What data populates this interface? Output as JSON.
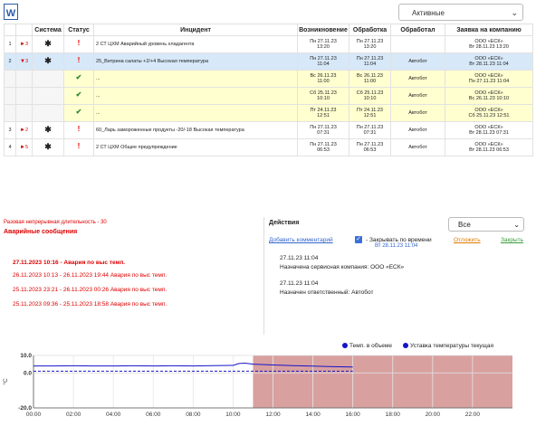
{
  "toolbar": {
    "word_icon": "word-document-icon",
    "filter_value": "Активные"
  },
  "table": {
    "headers": [
      "",
      "",
      "Система",
      "Статус",
      "Инцидент",
      "Возникновение",
      "Обработка",
      "Обработал",
      "Заявка на компанию"
    ],
    "rows": [
      {
        "num": "1",
        "arrow": "►",
        "count": "3",
        "status": "!",
        "incident": "2 СТ ЦХМ Аварийный уровень хладагента",
        "occurred": [
          "Пн 27.11.23",
          "13:20"
        ],
        "processed": [
          "Пн 27.11.23",
          "13:20"
        ],
        "by": "",
        "request": [
          "ООО «ЕСК»",
          "Вт 28.11.23 13:20"
        ],
        "cls": ""
      },
      {
        "num": "2",
        "arrow": "▼",
        "count": "3",
        "status": "!",
        "incident": "25_Витрина салаты +2/+4 Высокая температура",
        "occurred": [
          "Пн 27.11.23",
          "11:04"
        ],
        "processed": [
          "Пн 27.11.23",
          "11:04"
        ],
        "by": "Автобот",
        "request": [
          "ООО «ЕСК»",
          "Вт 28.11.23 11:04"
        ],
        "cls": "sel"
      },
      {
        "num": "",
        "arrow": "",
        "count": "",
        "status": "✔",
        "incident": "...",
        "occurred": [
          "Вс 26.11.23",
          "11:00"
        ],
        "processed": [
          "Вс 26.11.23",
          "11:00"
        ],
        "by": "Автобот",
        "request": [
          "ООО «ЕСК»",
          "Пн 27.11.23 11:04"
        ],
        "cls": "yel"
      },
      {
        "num": "",
        "arrow": "",
        "count": "",
        "status": "✔",
        "incident": "...",
        "occurred": [
          "Сб 25.11.23",
          "10:10"
        ],
        "processed": [
          "Сб 25.11.23",
          "10:10"
        ],
        "by": "Автобот",
        "request": [
          "ООО «ЕСК»",
          "Вс 26.11.23 10:10"
        ],
        "cls": "yel"
      },
      {
        "num": "",
        "arrow": "",
        "count": "",
        "status": "✔",
        "incident": "...",
        "occurred": [
          "Пт 24.11.23",
          "12:51"
        ],
        "processed": [
          "Пт 24.11.23",
          "12:51"
        ],
        "by": "Автобот",
        "request": [
          "ООО «ЕСК»",
          "Сб 25.11.23 12:51"
        ],
        "cls": "yel"
      },
      {
        "num": "3",
        "arrow": "►",
        "count": "2",
        "status": "!",
        "incident": "60_Ларь замороженные продукты -20/-18 Высокая температура",
        "occurred": [
          "Пн 27.11.23",
          "07:31"
        ],
        "processed": [
          "Пн 27.11.23",
          "07:31"
        ],
        "by": "Автобот",
        "request": [
          "ООО «ЕСК»",
          "Вт 28.11.23 07:31"
        ],
        "cls": ""
      },
      {
        "num": "4",
        "arrow": "►",
        "count": "5",
        "status": "!",
        "incident": "2 СТ ЦХМ Общее предупреждение",
        "occurred": [
          "Пн 27.11.23",
          "06:53"
        ],
        "processed": [
          "Пн 27.11.23",
          "06:53"
        ],
        "by": "Автобот",
        "request": [
          "ООО «ЕСК»",
          "Вт 28.11.23 06:53"
        ],
        "cls": ""
      }
    ]
  },
  "alarms": {
    "long_duration": "Разовая непрерывная длительность - 30",
    "title": "Аварийные сообщения",
    "items": [
      "27.11.2023 10:16 - Авария по выс темп.",
      "26.11.2023 10:13 - 26.11.2023 19:44 Авария по выс темп.",
      "25.11.2023 23:21 - 26.11.2023 00:26 Авария по выс темп.",
      "25.11.2023 09:36 - 25.11.2023 18:58 Авария по выс темп."
    ]
  },
  "actions": {
    "title": "Действия",
    "filter": "Все",
    "add_comment": "Добавить комментарий",
    "auto_close_label": "- Закрывать по времени",
    "auto_close_date": "Вт 28.11.23 11:04",
    "postpone": "Отложить",
    "close": "Закрыть",
    "entries": [
      {
        "date": "27.11.23 11:04",
        "text": "Назначена сервисная компания: ООО «ЕСК»"
      },
      {
        "date": "27.11.23 11:04",
        "text": "Назначен ответственный: Автобот"
      }
    ]
  },
  "chart_data": {
    "type": "line",
    "title": "",
    "ylabel": "°C",
    "xlabel": "",
    "ylim": [
      -20,
      10
    ],
    "yticks": [
      10.0,
      0.0,
      -20.0
    ],
    "ytick_labels": [
      "10.0",
      "0.0",
      "-20.0"
    ],
    "xticks": [
      "00:00",
      "02:00",
      "04:00",
      "06:00",
      "08:00",
      "10:00",
      "12:00",
      "14:00",
      "16:00",
      "18:00",
      "20:00",
      "22:00"
    ],
    "alarm_zone": {
      "from_hour": 11.0,
      "to_hour": 24.0,
      "color": "#d9a0a0"
    },
    "series": [
      {
        "name": "Темп. в объеме",
        "color": "#1515c8",
        "style": "solid",
        "x": [
          0,
          1,
          2,
          3,
          4,
          5,
          6,
          7,
          8,
          9,
          10,
          10.3,
          10.6,
          11,
          12,
          13,
          14,
          15,
          16
        ],
        "y": [
          4.0,
          4.0,
          4.1,
          4.0,
          4.0,
          4.1,
          4.0,
          4.1,
          4.0,
          4.2,
          4.3,
          5.4,
          5.6,
          5.0,
          4.6,
          4.2,
          3.9,
          3.6,
          3.4
        ]
      },
      {
        "name": "Уставка температуры текущая",
        "color": "#1515c8",
        "style": "dashed",
        "x": [
          0,
          16
        ],
        "y": [
          1.0,
          1.0
        ]
      }
    ]
  }
}
